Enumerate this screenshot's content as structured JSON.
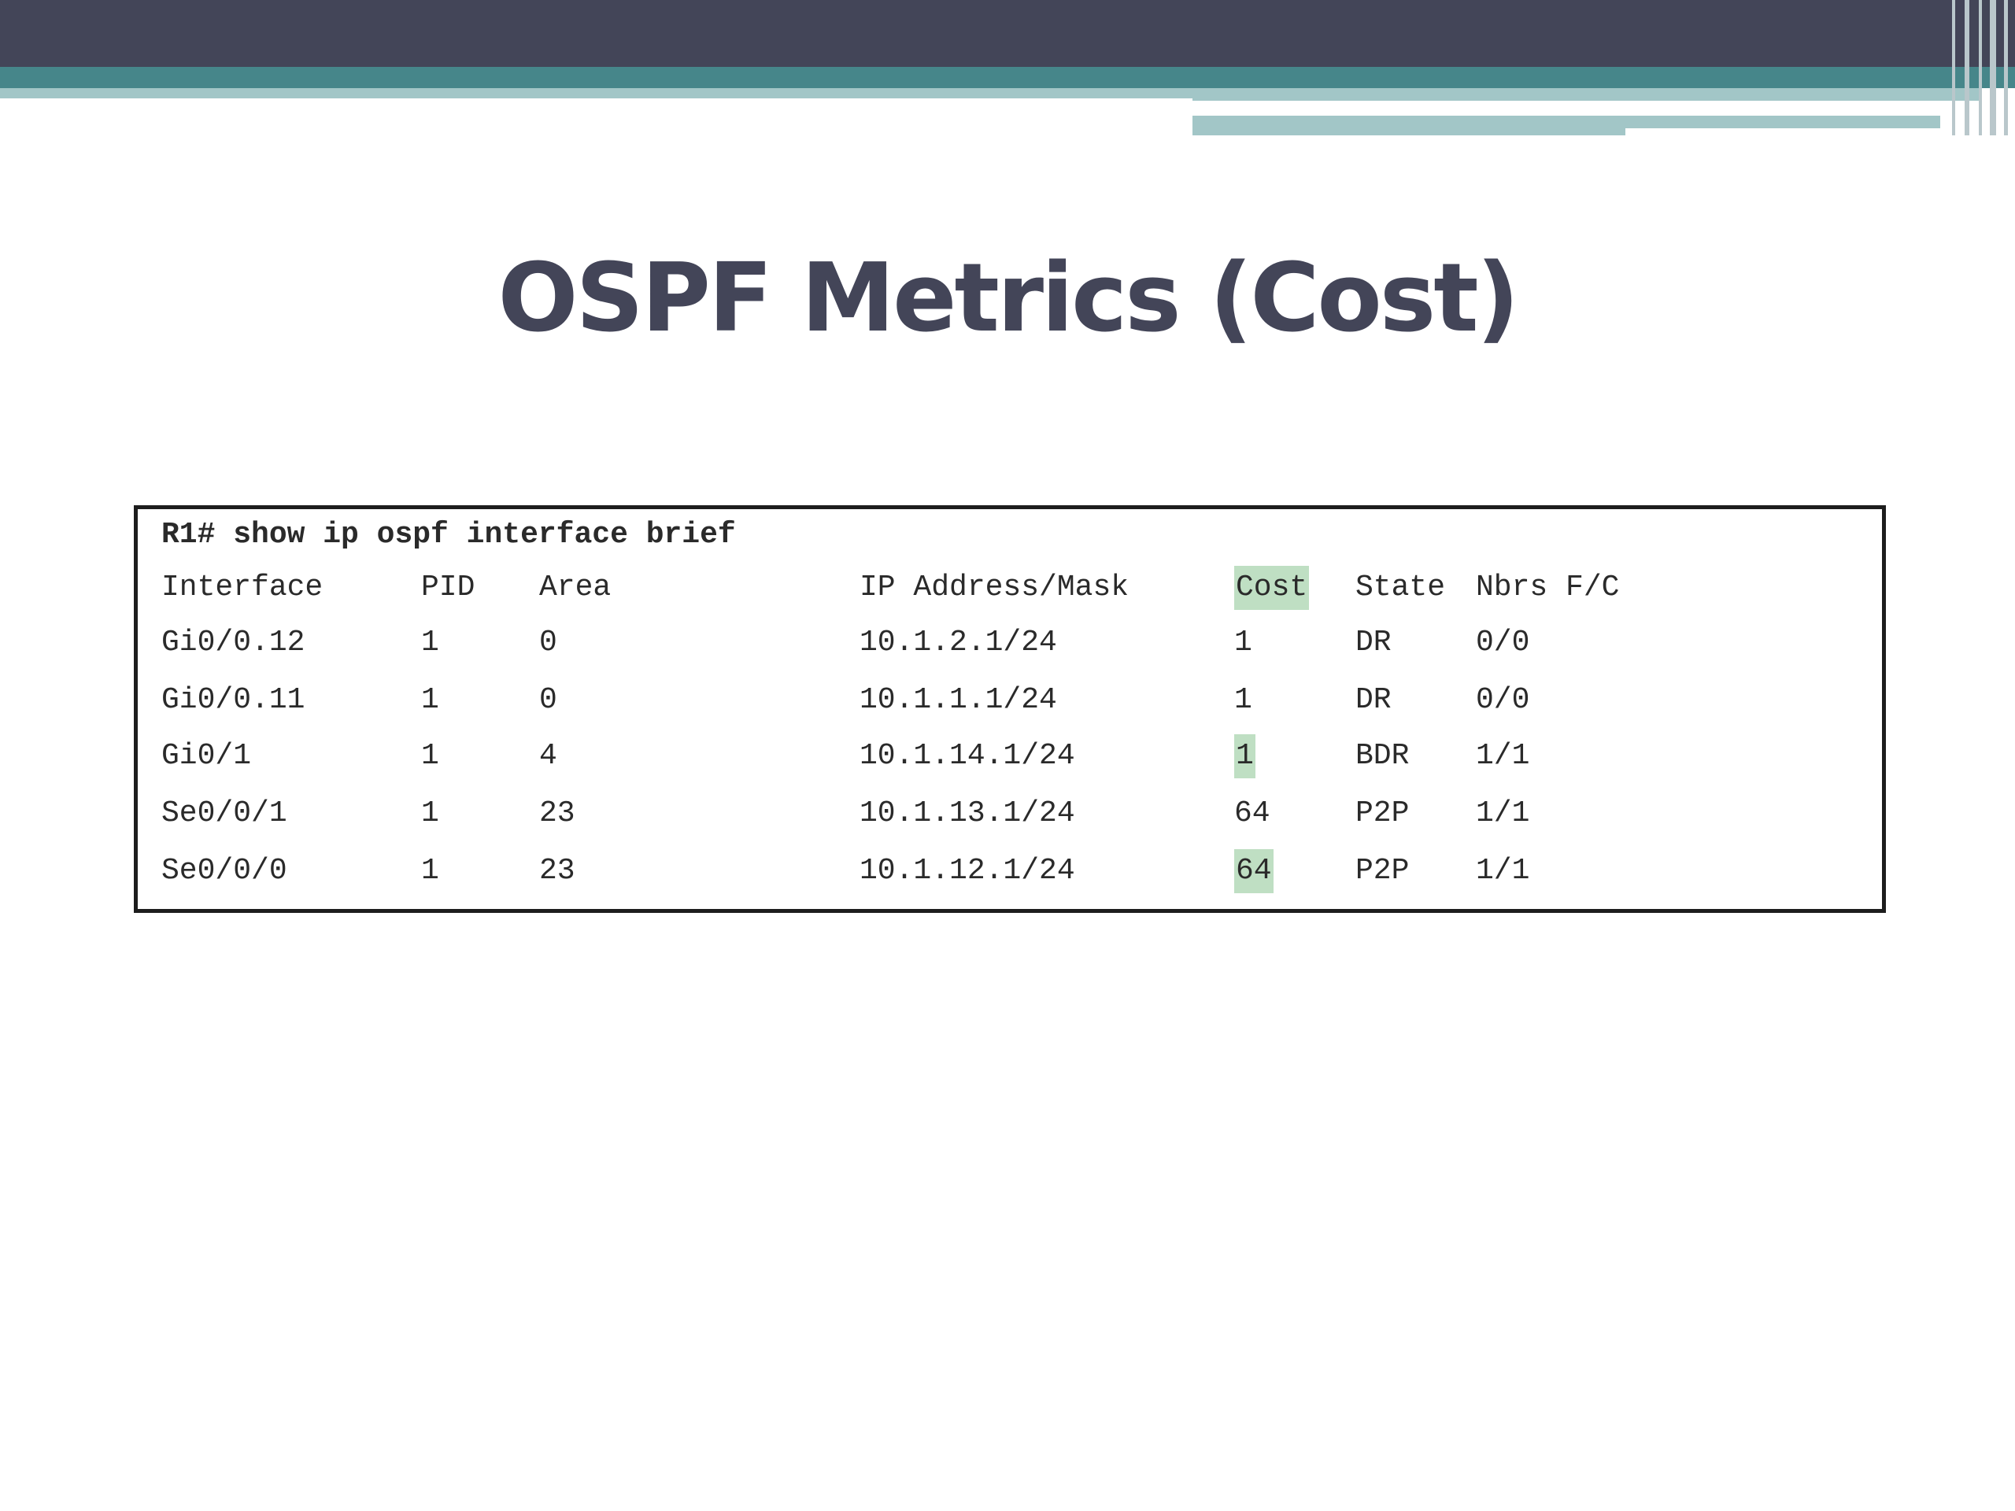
{
  "slide": {
    "title": "OSPF Metrics (Cost)"
  },
  "colors": {
    "title": "#434558",
    "header_dark": "#434558",
    "header_teal": "#46868a",
    "header_light": "#a2c6c7",
    "highlight": "#bfdfc3"
  },
  "terminal": {
    "command": "R1# show ip ospf interface brief",
    "headers": {
      "interface": "Interface",
      "pid": "PID",
      "area": "Area",
      "ip": "IP Address/Mask",
      "cost": "Cost",
      "state": "State",
      "nbrs": "Nbrs F/C"
    },
    "rows": [
      {
        "interface": "Gi0/0.12",
        "pid": "1",
        "area": "0",
        "ip": "10.1.2.1/24",
        "cost": "1",
        "state": "DR",
        "nbrs": "0/0",
        "cost_highlight": false
      },
      {
        "interface": "Gi0/0.11",
        "pid": "1",
        "area": "0",
        "ip": "10.1.1.1/24",
        "cost": "1",
        "state": "DR",
        "nbrs": "0/0",
        "cost_highlight": false
      },
      {
        "interface": "Gi0/1",
        "pid": "1",
        "area": "4",
        "ip": "10.1.14.1/24",
        "cost": "1",
        "state": "BDR",
        "nbrs": "1/1",
        "cost_highlight": true
      },
      {
        "interface": "Se0/0/1",
        "pid": "1",
        "area": "23",
        "ip": "10.1.13.1/24",
        "cost": "64",
        "state": "P2P",
        "nbrs": "1/1",
        "cost_highlight": false
      },
      {
        "interface": "Se0/0/0",
        "pid": "1",
        "area": "23",
        "ip": "10.1.12.1/24",
        "cost": "64",
        "state": "P2P",
        "nbrs": "1/1",
        "cost_highlight": true
      }
    ]
  }
}
